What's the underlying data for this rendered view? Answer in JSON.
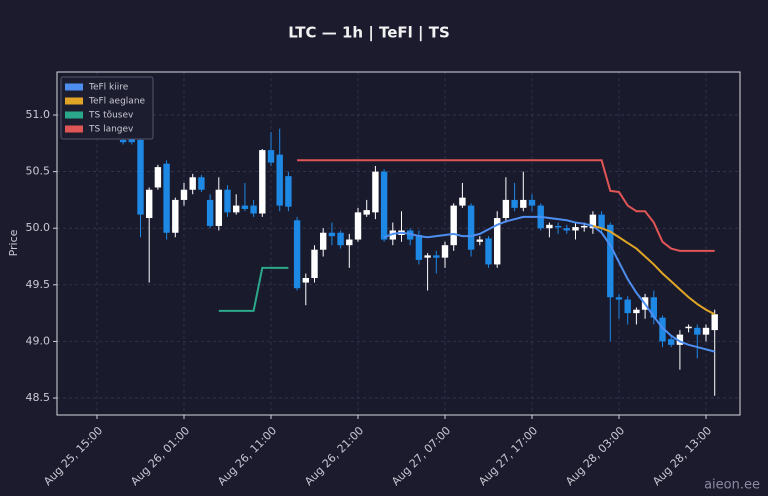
{
  "chart_data": {
    "type": "candlestick",
    "title": "LTC — 1h  |  TeFl  |  TS",
    "y_label": "Price",
    "watermark": "aieon.ee",
    "up_color": "#ffffff",
    "down_color": "#1e88e5",
    "grid": true,
    "legend": "upper left",
    "ylim": [
      48.35,
      51.38
    ],
    "yticks": [
      48.5,
      {
        "value": 49.0,
        "label": "49.0"
      },
      49.5,
      {
        "value": 50.0,
        "label": "50.0"
      },
      50.5,
      {
        "value": 51.0,
        "label": "51.0"
      }
    ],
    "categories": [
      "Aug 25, 15:00",
      null,
      null,
      null,
      null,
      null,
      null,
      null,
      null,
      null,
      "Aug 26, 01:00",
      null,
      null,
      null,
      null,
      null,
      null,
      null,
      null,
      null,
      "Aug 26, 11:00",
      null,
      null,
      null,
      null,
      null,
      null,
      null,
      null,
      null,
      "Aug 26, 21:00",
      null,
      null,
      null,
      null,
      null,
      null,
      null,
      null,
      null,
      "Aug 27, 07:00",
      null,
      null,
      null,
      null,
      null,
      null,
      null,
      null,
      null,
      "Aug 27, 17:00",
      null,
      null,
      null,
      null,
      null,
      null,
      null,
      null,
      null,
      "Aug 28, 03:00",
      null,
      null,
      null,
      null,
      null,
      null,
      null,
      null,
      null,
      "Aug 28, 13:00",
      null
    ],
    "open": [
      null,
      null,
      null,
      50.78,
      50.8,
      50.78,
      50.09,
      50.36,
      50.57,
      49.96,
      50.25,
      50.34,
      50.45,
      50.25,
      50.02,
      50.34,
      50.14,
      50.2,
      50.2,
      50.13,
      50.69,
      50.65,
      50.46,
      50.07,
      49.52,
      49.56,
      49.81,
      49.96,
      49.96,
      49.85,
      49.9,
      50.12,
      50.14,
      50.5,
      49.9,
      49.94,
      49.98,
      49.94,
      49.74,
      49.76,
      49.74,
      49.85,
      50.2,
      50.2,
      49.88,
      49.91,
      49.68,
      50.09,
      50.25,
      50.18,
      50.25,
      50.2,
      50.0,
      50.02,
      50.0,
      49.98,
      50.01,
      50.0,
      50.12,
      50.03,
      49.39,
      49.37,
      49.25,
      49.28,
      49.39,
      49.21,
      49.02,
      48.97,
      49.12,
      49.12,
      49.06,
      49.1
    ],
    "high": [
      null,
      null,
      null,
      50.8,
      50.82,
      50.8,
      50.36,
      50.56,
      50.6,
      50.27,
      50.4,
      50.48,
      50.47,
      50.3,
      50.45,
      50.38,
      50.3,
      50.4,
      50.25,
      50.7,
      50.85,
      50.88,
      50.5,
      50.1,
      49.6,
      49.85,
      50.0,
      50.05,
      49.98,
      49.95,
      50.18,
      50.25,
      50.55,
      50.52,
      50.05,
      50.15,
      50.0,
      49.98,
      49.78,
      49.8,
      49.88,
      50.22,
      50.4,
      50.22,
      49.93,
      49.93,
      50.15,
      50.45,
      50.4,
      50.5,
      50.3,
      50.22,
      50.05,
      50.05,
      50.03,
      50.05,
      50.05,
      50.15,
      50.15,
      50.05,
      49.42,
      49.4,
      49.3,
      49.42,
      49.45,
      49.23,
      49.05,
      49.1,
      49.15,
      49.15,
      49.15,
      49.28
    ],
    "low": [
      null,
      null,
      null,
      50.74,
      50.74,
      49.92,
      49.52,
      50.34,
      49.9,
      49.92,
      50.2,
      50.3,
      50.32,
      50.0,
      49.98,
      50.1,
      50.12,
      50.15,
      50.1,
      50.1,
      50.55,
      50.15,
      50.15,
      49.45,
      49.32,
      49.52,
      49.75,
      49.85,
      49.82,
      49.65,
      49.88,
      50.1,
      50.08,
      49.88,
      49.85,
      49.88,
      49.85,
      49.68,
      49.45,
      49.6,
      49.65,
      49.8,
      50.18,
      49.75,
      49.85,
      49.65,
      49.65,
      50.05,
      50.15,
      50.15,
      50.15,
      49.98,
      49.92,
      49.95,
      49.95,
      49.9,
      49.97,
      49.95,
      49.97,
      49.0,
      49.2,
      49.15,
      49.15,
      49.2,
      49.15,
      48.95,
      48.95,
      48.75,
      49.08,
      48.85,
      49.0,
      48.52
    ],
    "close": [
      null,
      null,
      null,
      50.76,
      50.76,
      50.12,
      50.34,
      50.54,
      49.96,
      50.25,
      50.34,
      50.45,
      50.34,
      50.02,
      50.34,
      50.14,
      50.2,
      50.17,
      50.13,
      50.69,
      50.58,
      50.2,
      50.19,
      49.47,
      49.56,
      49.81,
      49.96,
      49.93,
      49.85,
      49.9,
      50.14,
      50.16,
      50.5,
      49.9,
      49.98,
      49.98,
      49.9,
      49.72,
      49.76,
      49.74,
      49.85,
      50.2,
      50.27,
      49.81,
      49.9,
      49.68,
      50.09,
      50.25,
      50.18,
      50.25,
      50.2,
      50.0,
      50.03,
      50.01,
      49.98,
      50.01,
      50.02,
      50.12,
      50.0,
      49.39,
      49.37,
      49.25,
      49.28,
      49.39,
      49.21,
      49.0,
      48.97,
      49.06,
      49.13,
      49.06,
      49.12,
      49.24
    ],
    "series": [
      {
        "name": "TeFl kiire",
        "color": "#4d8ef0",
        "values": [
          null,
          null,
          null,
          null,
          null,
          null,
          null,
          null,
          null,
          null,
          null,
          null,
          null,
          null,
          null,
          null,
          null,
          null,
          null,
          null,
          null,
          null,
          null,
          null,
          null,
          null,
          null,
          null,
          null,
          null,
          null,
          null,
          null,
          49.92,
          49.95,
          49.96,
          49.95,
          49.93,
          49.92,
          49.93,
          49.94,
          49.95,
          49.93,
          49.93,
          49.95,
          49.99,
          50.03,
          50.06,
          50.08,
          50.1,
          50.1,
          50.1,
          50.09,
          50.08,
          50.07,
          50.05,
          50.04,
          50.02,
          49.96,
          49.85,
          49.7,
          49.55,
          49.43,
          49.33,
          49.22,
          49.12,
          49.05,
          49.0,
          48.97,
          48.95,
          48.93,
          48.91
        ]
      },
      {
        "name": "TeFl aeglane",
        "color": "#e0a526",
        "values": [
          null,
          null,
          null,
          null,
          null,
          null,
          null,
          null,
          null,
          null,
          null,
          null,
          null,
          null,
          null,
          null,
          null,
          null,
          null,
          null,
          null,
          null,
          null,
          null,
          null,
          null,
          null,
          null,
          null,
          null,
          null,
          null,
          null,
          null,
          null,
          null,
          null,
          null,
          null,
          null,
          null,
          null,
          null,
          null,
          null,
          null,
          null,
          null,
          null,
          null,
          null,
          null,
          null,
          null,
          null,
          null,
          null,
          50.02,
          50.0,
          49.97,
          49.92,
          49.87,
          49.82,
          49.75,
          49.68,
          49.6,
          49.53,
          49.46,
          49.39,
          49.33,
          49.28,
          49.24
        ]
      },
      {
        "name": "TS tõusev",
        "color": "#2ba88a",
        "values": [
          null,
          null,
          null,
          null,
          null,
          null,
          null,
          null,
          null,
          null,
          null,
          null,
          null,
          null,
          49.27,
          49.27,
          49.27,
          49.27,
          49.27,
          49.65,
          49.65,
          49.65,
          49.65,
          null,
          null,
          null,
          null,
          null,
          null,
          null,
          null,
          null,
          null,
          null,
          null,
          null,
          null,
          null,
          null,
          null,
          null,
          null,
          null,
          null,
          null,
          null,
          null,
          null,
          null,
          null,
          null,
          null,
          null,
          null,
          null,
          null,
          null,
          null,
          null,
          null,
          null,
          null,
          null,
          null,
          null,
          null,
          null,
          null,
          null,
          null,
          null,
          null
        ]
      },
      {
        "name": "TS langev",
        "color": "#e05555",
        "values": [
          null,
          null,
          null,
          null,
          null,
          null,
          null,
          null,
          null,
          null,
          null,
          null,
          null,
          null,
          null,
          null,
          null,
          null,
          null,
          null,
          null,
          null,
          null,
          50.6,
          50.6,
          50.6,
          50.6,
          50.6,
          50.6,
          50.6,
          50.6,
          50.6,
          50.6,
          50.6,
          50.6,
          50.6,
          50.6,
          50.6,
          50.6,
          50.6,
          50.6,
          50.6,
          50.6,
          50.6,
          50.6,
          50.6,
          50.6,
          50.6,
          50.6,
          50.6,
          50.6,
          50.6,
          50.6,
          50.6,
          50.6,
          50.6,
          50.6,
          50.6,
          50.6,
          50.33,
          50.32,
          50.2,
          50.15,
          50.15,
          50.05,
          49.88,
          49.82,
          49.8,
          49.8,
          49.8,
          49.8,
          49.8
        ]
      }
    ]
  }
}
